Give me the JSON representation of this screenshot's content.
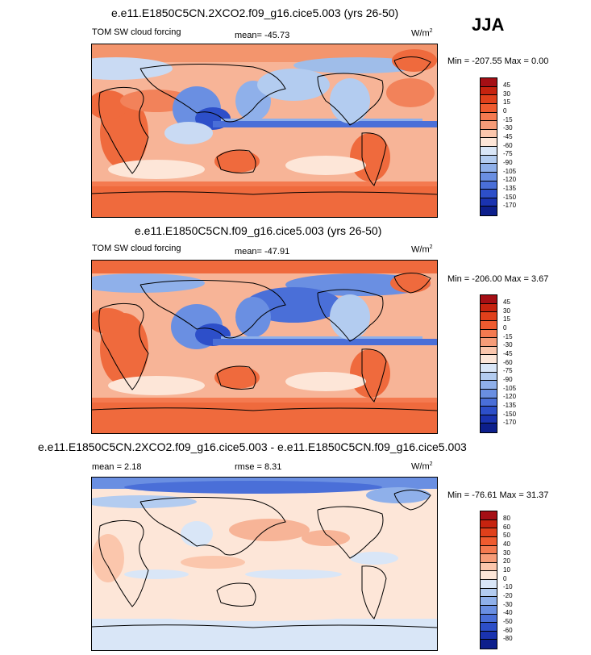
{
  "season": "JJA",
  "panels": [
    {
      "title": "e.e11.E1850C5CN.2XCO2.f09_g16.cice5.003 (yrs 26-50)",
      "var_label": "TOM SW cloud forcing",
      "stat1": "mean= -45.73",
      "stat2": "",
      "units": "W/m",
      "units_exp": "2",
      "minmax": "Min = -207.55 Max =   0.00",
      "levels": [
        "45",
        "30",
        "15",
        "0",
        "-15",
        "-30",
        "-45",
        "-60",
        "-75",
        "-90",
        "-105",
        "-120",
        "-135",
        "-150",
        "-170"
      ],
      "colors": [
        "#a50f15",
        "#c6230f",
        "#e0401b",
        "#ef5b2f",
        "#f47a50",
        "#f69c78",
        "#fbc6ac",
        "#fde6d8",
        "#d9e6f7",
        "#b3ccf0",
        "#8fb0ea",
        "#6a8fe2",
        "#4a6fd8",
        "#2d4fc9",
        "#1a33b0",
        "#0d1f8c"
      ]
    },
    {
      "title": "e.e11.E1850C5CN.f09_g16.cice5.003 (yrs 26-50)",
      "var_label": "TOM SW cloud forcing",
      "stat1": "mean= -47.91",
      "stat2": "",
      "units": "W/m",
      "units_exp": "2",
      "minmax": "Min = -206.00 Max =   3.67",
      "levels": [
        "45",
        "30",
        "15",
        "0",
        "-15",
        "-30",
        "-45",
        "-60",
        "-75",
        "-90",
        "-105",
        "-120",
        "-135",
        "-150",
        "-170"
      ],
      "colors": [
        "#a50f15",
        "#c6230f",
        "#e0401b",
        "#ef5b2f",
        "#f47a50",
        "#f69c78",
        "#fbc6ac",
        "#fde6d8",
        "#d9e6f7",
        "#b3ccf0",
        "#8fb0ea",
        "#6a8fe2",
        "#4a6fd8",
        "#2d4fc9",
        "#1a33b0",
        "#0d1f8c"
      ]
    },
    {
      "title": "e.e11.E1850C5CN.2XCO2.f09_g16.cice5.003 - e.e11.E1850C5CN.f09_g16.cice5.003",
      "var_label": "mean =  2.18",
      "stat1": "rmse =  8.31",
      "stat2": "",
      "units": "W/m",
      "units_exp": "2",
      "minmax": "Min = -76.61 Max = 31.37",
      "levels": [
        "80",
        "60",
        "50",
        "40",
        "30",
        "20",
        "10",
        "0",
        "-10",
        "-20",
        "-30",
        "-40",
        "-50",
        "-60",
        "-80"
      ],
      "colors": [
        "#a50f15",
        "#c6230f",
        "#e0401b",
        "#ef5b2f",
        "#f47a50",
        "#f69c78",
        "#fbc6ac",
        "#fde6d8",
        "#d9e6f7",
        "#b3ccf0",
        "#8fb0ea",
        "#6a8fe2",
        "#4a6fd8",
        "#2d4fc9",
        "#1a33b0",
        "#0d1f8c"
      ]
    }
  ]
}
